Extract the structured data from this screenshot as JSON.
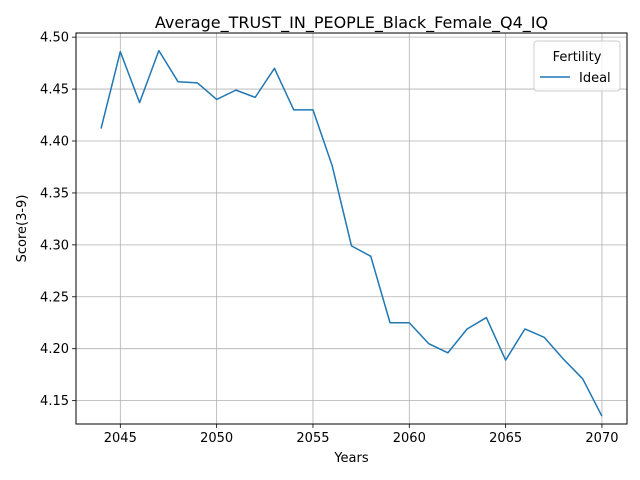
{
  "chart_data": {
    "type": "line",
    "title": "Average_TRUST_IN_PEOPLE_Black_Female_Q4_IQ",
    "xlabel": "Years",
    "ylabel": "Score(3-9)",
    "xlim": [
      2042.7,
      2071.3
    ],
    "ylim": [
      4.1275,
      4.504
    ],
    "xticks": [
      2045,
      2050,
      2055,
      2060,
      2065,
      2070
    ],
    "yticks": [
      4.15,
      4.2,
      4.25,
      4.3,
      4.35,
      4.4,
      4.45,
      4.5
    ],
    "xtick_labels": [
      "2045",
      "2050",
      "2055",
      "2060",
      "2065",
      "2070"
    ],
    "ytick_labels": [
      "4.15",
      "4.20",
      "4.25",
      "4.30",
      "4.35",
      "4.40",
      "4.45",
      "4.50"
    ],
    "grid": true,
    "legend": {
      "title": "Fertility",
      "placement": "top-right"
    },
    "series": [
      {
        "name": "Ideal",
        "color": "#1f77b4",
        "x": [
          2044,
          2045,
          2046,
          2047,
          2048,
          2049,
          2050,
          2051,
          2052,
          2053,
          2054,
          2055,
          2056,
          2057,
          2058,
          2059,
          2060,
          2061,
          2062,
          2063,
          2064,
          2065,
          2066,
          2067,
          2068,
          2069,
          2070
        ],
        "y": [
          4.412,
          4.486,
          4.437,
          4.487,
          4.457,
          4.456,
          4.44,
          4.449,
          4.442,
          4.47,
          4.43,
          4.43,
          4.376,
          4.299,
          4.289,
          4.225,
          4.225,
          4.205,
          4.196,
          4.219,
          4.23,
          4.189,
          4.219,
          4.211,
          4.19,
          4.171,
          4.135
        ]
      }
    ]
  }
}
